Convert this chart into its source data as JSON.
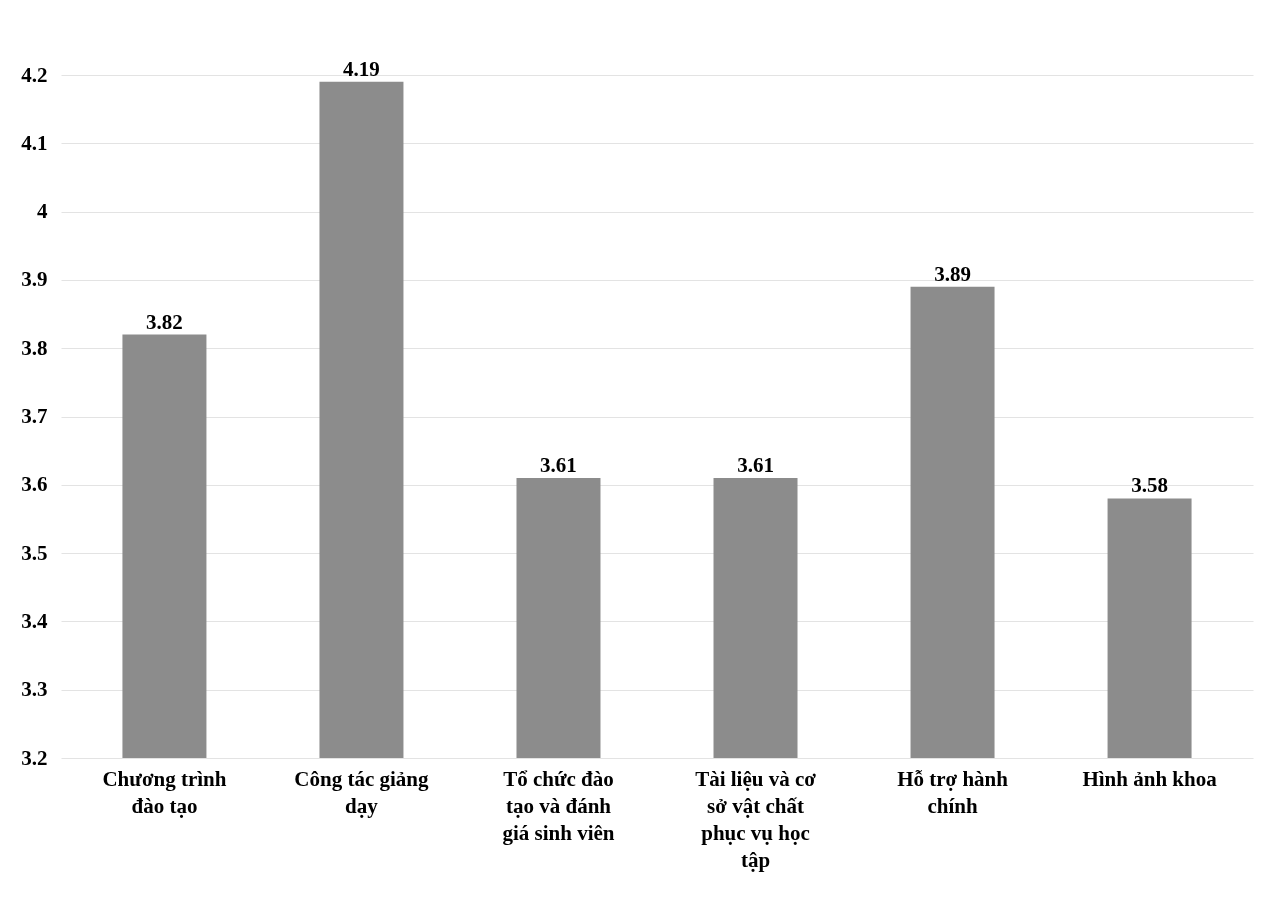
{
  "chart_data": {
    "type": "bar",
    "categories": [
      "Chương trình đào tạo",
      "Công tác giảng dạy",
      "Tổ chức đào tạo và đánh giá sinh viên",
      "Tài liệu và cơ sở vật chất phục vụ học tập",
      "Hỗ trợ hành chính",
      "Hình ảnh khoa"
    ],
    "values": [
      3.82,
      4.19,
      3.61,
      3.61,
      3.89,
      3.58
    ],
    "color": "#8c8c8c",
    "ylim": [
      3.2,
      4.2
    ],
    "yticks": [
      3.2,
      3.3,
      3.4,
      3.5,
      3.6,
      3.7,
      3.8,
      3.9,
      4,
      4.1,
      4.2
    ],
    "grid": "y",
    "data_labels": true
  }
}
